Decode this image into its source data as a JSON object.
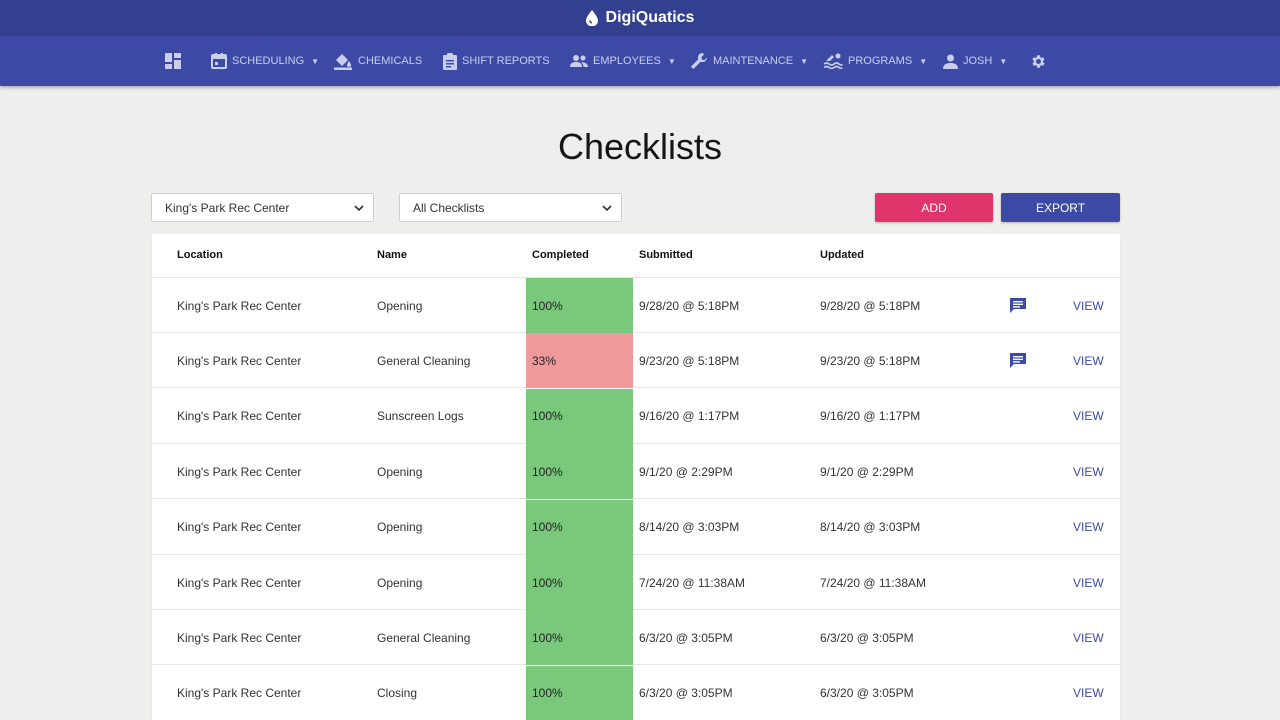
{
  "app": {
    "title": "DigiQuatics"
  },
  "nav": {
    "items": [
      {
        "label": "",
        "icon": "dashboard-icon"
      },
      {
        "label": "Scheduling",
        "icon": "calendar-icon",
        "dropdown": true
      },
      {
        "label": "Chemicals",
        "icon": "chemicals-icon",
        "dropdown": false
      },
      {
        "label": "Shift Reports",
        "icon": "report-icon",
        "dropdown": false
      },
      {
        "label": "Employees",
        "icon": "people-icon",
        "dropdown": true
      },
      {
        "label": "Maintenance",
        "icon": "wrench-icon",
        "dropdown": true
      },
      {
        "label": "Programs",
        "icon": "swimmer-icon",
        "dropdown": true
      },
      {
        "label": "Josh",
        "icon": "person-icon",
        "dropdown": true
      },
      {
        "label": "",
        "icon": "gear-icon"
      }
    ],
    "caret": "▼"
  },
  "page": {
    "title": "Checklists"
  },
  "filters": {
    "location": {
      "value": "King's Park Rec Center"
    },
    "checklist": {
      "value": "All Checklists"
    }
  },
  "actions": {
    "add_label": "ADD",
    "export_label": "EXPORT"
  },
  "colors": {
    "brand": "#33408f",
    "nav": "#3d4aa5",
    "add": "#e0356a",
    "export": "#3d4aa5",
    "complete": "#7ac87c",
    "incomplete": "#f0999b",
    "link": "#3d4aa5"
  },
  "table": {
    "columns": [
      "Location",
      "Name",
      "Completed",
      "Submitted",
      "Updated"
    ],
    "rows": [
      {
        "location": "King's Park Rec Center",
        "name": "Opening",
        "completed": "100%",
        "completed_pct": 100,
        "submitted": "9/28/20 @ 5:18PM",
        "updated": "9/28/20 @ 5:18PM",
        "has_comment": true,
        "action": "VIEW"
      },
      {
        "location": "King's Park Rec Center",
        "name": "General Cleaning",
        "completed": "33%",
        "completed_pct": 33,
        "submitted": "9/23/20 @ 5:18PM",
        "updated": "9/23/20 @ 5:18PM",
        "has_comment": true,
        "action": "VIEW"
      },
      {
        "location": "King's Park Rec Center",
        "name": "Sunscreen Logs",
        "completed": "100%",
        "completed_pct": 100,
        "submitted": "9/16/20 @ 1:17PM",
        "updated": "9/16/20 @ 1:17PM",
        "has_comment": false,
        "action": "VIEW"
      },
      {
        "location": "King's Park Rec Center",
        "name": "Opening",
        "completed": "100%",
        "completed_pct": 100,
        "submitted": "9/1/20 @ 2:29PM",
        "updated": "9/1/20 @ 2:29PM",
        "has_comment": false,
        "action": "VIEW"
      },
      {
        "location": "King's Park Rec Center",
        "name": "Opening",
        "completed": "100%",
        "completed_pct": 100,
        "submitted": "8/14/20 @ 3:03PM",
        "updated": "8/14/20 @ 3:03PM",
        "has_comment": false,
        "action": "VIEW"
      },
      {
        "location": "King's Park Rec Center",
        "name": "Opening",
        "completed": "100%",
        "completed_pct": 100,
        "submitted": "7/24/20 @ 11:38AM",
        "updated": "7/24/20 @ 11:38AM",
        "has_comment": false,
        "action": "VIEW"
      },
      {
        "location": "King's Park Rec Center",
        "name": "General Cleaning",
        "completed": "100%",
        "completed_pct": 100,
        "submitted": "6/3/20 @ 3:05PM",
        "updated": "6/3/20 @ 3:05PM",
        "has_comment": false,
        "action": "VIEW"
      },
      {
        "location": "King's Park Rec Center",
        "name": "Closing",
        "completed": "100%",
        "completed_pct": 100,
        "submitted": "6/3/20 @ 3:05PM",
        "updated": "6/3/20 @ 3:05PM",
        "has_comment": false,
        "action": "VIEW"
      }
    ]
  }
}
